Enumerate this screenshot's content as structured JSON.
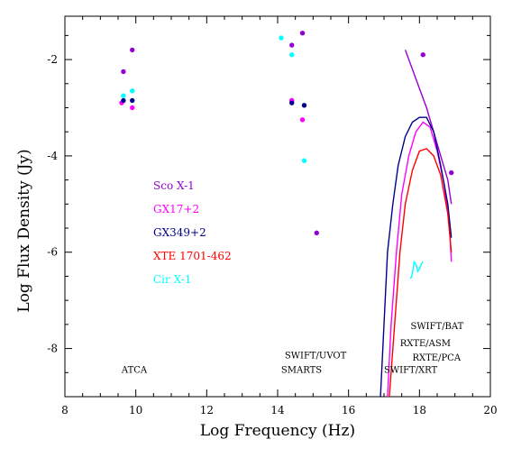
{
  "chart_data": {
    "type": "scatter",
    "xlabel": "Log Frequency (Hz)",
    "ylabel": "Log Flux Density (Jy)",
    "xlim": [
      8,
      20
    ],
    "ylim": [
      -9,
      -1.1
    ],
    "x_ticks": [
      "8",
      "10",
      "12",
      "14",
      "16",
      "18",
      "20"
    ],
    "y_ticks": [
      "-2",
      "-4",
      "-6",
      "-8"
    ],
    "legend_position": "left-center",
    "series": [
      {
        "name": "Sco X-1",
        "color": "#9400D3",
        "points": [
          [
            9.9,
            -1.8
          ],
          [
            9.65,
            -2.25
          ],
          [
            14.7,
            -1.45
          ],
          [
            14.4,
            -1.7
          ],
          [
            14.4,
            -2.85
          ],
          [
            15.1,
            -5.6
          ],
          [
            18.1,
            -1.9
          ],
          [
            18.9,
            -4.35
          ]
        ],
        "curve": [
          [
            17.6,
            -1.8
          ],
          [
            17.8,
            -2.2
          ],
          [
            18.0,
            -2.6
          ],
          [
            18.2,
            -3.0
          ],
          [
            18.4,
            -3.5
          ],
          [
            18.6,
            -4.0
          ],
          [
            18.8,
            -4.5
          ],
          [
            18.9,
            -5.0
          ]
        ]
      },
      {
        "name": "GX17+2",
        "color": "#FF00FF",
        "points": [
          [
            9.6,
            -2.9
          ],
          [
            9.9,
            -3.0
          ],
          [
            14.4,
            -2.85
          ],
          [
            14.7,
            -3.25
          ]
        ],
        "curve": [
          [
            17.1,
            -9.0
          ],
          [
            17.2,
            -7.5
          ],
          [
            17.35,
            -6.0
          ],
          [
            17.5,
            -4.8
          ],
          [
            17.7,
            -4.0
          ],
          [
            17.9,
            -3.5
          ],
          [
            18.1,
            -3.3
          ],
          [
            18.3,
            -3.4
          ],
          [
            18.5,
            -3.9
          ],
          [
            18.7,
            -4.6
          ],
          [
            18.85,
            -5.5
          ],
          [
            18.9,
            -6.2
          ]
        ]
      },
      {
        "name": "GX349+2",
        "color": "#00008B",
        "points": [
          [
            9.65,
            -2.85
          ],
          [
            9.9,
            -2.85
          ],
          [
            14.4,
            -2.9
          ],
          [
            14.75,
            -2.95
          ]
        ],
        "curve": [
          [
            16.9,
            -9.0
          ],
          [
            17.0,
            -7.5
          ],
          [
            17.1,
            -6.0
          ],
          [
            17.25,
            -5.0
          ],
          [
            17.4,
            -4.2
          ],
          [
            17.6,
            -3.6
          ],
          [
            17.8,
            -3.3
          ],
          [
            18.0,
            -3.2
          ],
          [
            18.2,
            -3.2
          ],
          [
            18.4,
            -3.5
          ],
          [
            18.6,
            -4.2
          ],
          [
            18.8,
            -5.0
          ],
          [
            18.9,
            -5.7
          ]
        ]
      },
      {
        "name": "XTE 1701-462",
        "color": "#FF0000",
        "curve": [
          [
            17.15,
            -9.0
          ],
          [
            17.3,
            -7.5
          ],
          [
            17.45,
            -6.0
          ],
          [
            17.6,
            -5.0
          ],
          [
            17.8,
            -4.3
          ],
          [
            18.0,
            -3.9
          ],
          [
            18.2,
            -3.85
          ],
          [
            18.4,
            -4.0
          ],
          [
            18.6,
            -4.4
          ],
          [
            18.8,
            -5.2
          ],
          [
            18.9,
            -6.0
          ]
        ]
      },
      {
        "name": "Cir X-1",
        "color": "#00FFFF",
        "points": [
          [
            9.65,
            -2.75
          ],
          [
            9.9,
            -2.65
          ],
          [
            14.1,
            -1.55
          ],
          [
            14.4,
            -1.9
          ],
          [
            14.75,
            -4.1
          ]
        ],
        "curve": [
          [
            17.75,
            -6.55
          ],
          [
            17.8,
            -6.45
          ],
          [
            17.85,
            -6.2
          ],
          [
            17.9,
            -6.25
          ],
          [
            17.95,
            -6.4
          ],
          [
            18.0,
            -6.35
          ],
          [
            18.05,
            -6.25
          ],
          [
            18.1,
            -6.2
          ]
        ]
      }
    ],
    "annotations": [
      {
        "text": "ATCA",
        "x": 9.6,
        "y": -8.5
      },
      {
        "text": "SWIFT/UVOT",
        "x": 14.2,
        "y": -8.2
      },
      {
        "text": "SMARTS",
        "x": 14.1,
        "y": -8.5
      },
      {
        "text": "SWIFT/BAT",
        "x": 17.75,
        "y": -7.6
      },
      {
        "text": "RXTE/ASM",
        "x": 17.45,
        "y": -7.95
      },
      {
        "text": "RXTE/PCA",
        "x": 17.8,
        "y": -8.25
      },
      {
        "text": "SWIFT/XRT",
        "x": 17.0,
        "y": -8.5
      }
    ]
  }
}
